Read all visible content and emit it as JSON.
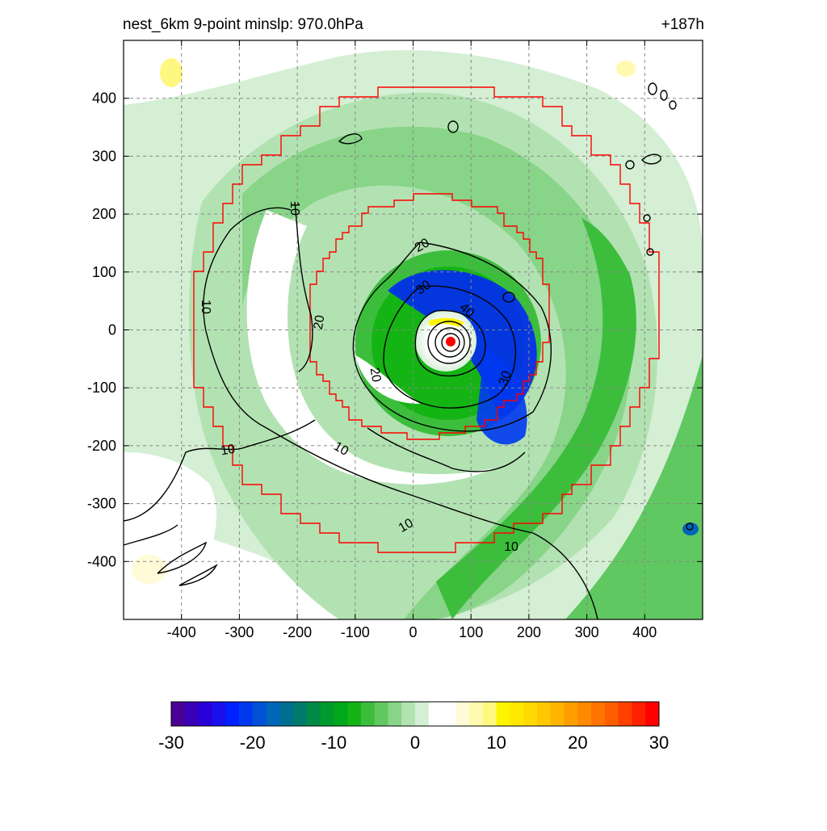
{
  "plot": {
    "title_left": "nest_6km  9-point minslp: 970.0hPa",
    "title_right": "+187h",
    "x_ticks": [
      -400,
      -300,
      -200,
      -100,
      0,
      100,
      200,
      300,
      400
    ],
    "y_ticks": [
      400,
      300,
      200,
      100,
      0,
      -100,
      -200,
      -300,
      -400
    ],
    "xlim": [
      -500,
      500
    ],
    "ylim": [
      -500,
      500
    ],
    "grid": "dashed gray",
    "contour_labels": [
      "10",
      "10",
      "10",
      "10",
      "10",
      "10",
      "20",
      "20",
      "20",
      "30",
      "30",
      "40"
    ]
  },
  "colorbar": {
    "ticks": [
      "-30",
      "-20",
      "-10",
      "0",
      "10",
      "20",
      "30"
    ],
    "range": [
      -30,
      30
    ],
    "colors": [
      "#4b0095",
      "#3a00b8",
      "#2a00d8",
      "#1a10ee",
      "#0020ff",
      "#0038f0",
      "#0050d8",
      "#0066b8",
      "#006e90",
      "#007a6a",
      "#008a46",
      "#009a2e",
      "#00a81c",
      "#14b414",
      "#3cbe3c",
      "#60c860",
      "#88d488",
      "#b2e2b2",
      "#d4efd4",
      "#ffffff",
      "#ffffff",
      "#fffbd8",
      "#fffab0",
      "#fff880",
      "#fff400",
      "#ffe800",
      "#ffda00",
      "#ffc800",
      "#ffb400",
      "#ff9e00",
      "#ff8a00",
      "#ff7400",
      "#ff5e00",
      "#ff4000",
      "#ff2000",
      "#ff0000"
    ]
  },
  "field": {
    "center_marker_color": "#ff0000",
    "eyewall_color": "#0000ff",
    "nest_boundary_color": "#ff0000",
    "contour_color": "#000000"
  }
}
